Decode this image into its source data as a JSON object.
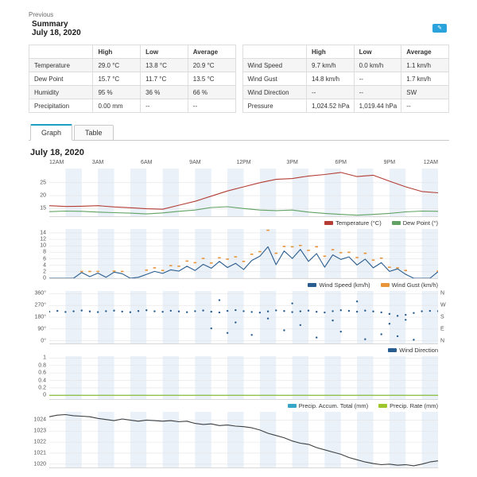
{
  "header": {
    "previous_label": "Previous",
    "title": "Summary",
    "date": "July 18, 2020"
  },
  "icons": {
    "top_right_action": "✎"
  },
  "colors": {
    "accent_tab": "#1d9fc4",
    "stripe": "#eaf1f8",
    "grid": "#e3e3e3",
    "button_blue": "#2aa3dc",
    "temperature": "#b43c35",
    "dew_point": "#61a164",
    "wind_speed": "#2a5d8f",
    "wind_gust": "#e8953a",
    "wind_direction": "#2a5d8f",
    "precip_accum": "#37a6c7",
    "precip_rate": "#9dc62d",
    "pressure": "#3c4043"
  },
  "summary_tables": [
    {
      "name": "conditions",
      "headers": [
        "",
        "High",
        "Low",
        "Average"
      ],
      "rows": [
        {
          "label": "Temperature",
          "values": [
            "29.0 °C",
            "13.8 °C",
            "20.9 °C"
          ]
        },
        {
          "label": "Dew Point",
          "values": [
            "15.7 °C",
            "11.7 °C",
            "13.5 °C"
          ]
        },
        {
          "label": "Humidity",
          "values": [
            "95 %",
            "36 %",
            "66 %"
          ]
        },
        {
          "label": "Precipitation",
          "values": [
            "0.00 mm",
            "--",
            "--"
          ]
        }
      ]
    },
    {
      "name": "wind-pressure",
      "headers": [
        "",
        "High",
        "Low",
        "Average"
      ],
      "rows": [
        {
          "label": "Wind Speed",
          "values": [
            "9.7 km/h",
            "0.0 km/h",
            "1.1 km/h"
          ]
        },
        {
          "label": "Wind Gust",
          "values": [
            "14.8 km/h",
            "--",
            "1.7 km/h"
          ]
        },
        {
          "label": "Wind Direction",
          "values": [
            "--",
            "--",
            "SW"
          ]
        },
        {
          "label": "Pressure",
          "values": [
            "1,024.52 hPa",
            "1,019.44 hPa",
            "--"
          ]
        }
      ]
    }
  ],
  "tabs": [
    {
      "id": "graph",
      "label": "Graph",
      "active": true
    },
    {
      "id": "table",
      "label": "Table",
      "active": false
    }
  ],
  "graph_section": {
    "date": "July 18, 2020",
    "xaxis_labels": [
      "12AM",
      "3AM",
      "6AM",
      "9AM",
      "12PM",
      "3PM",
      "6PM",
      "9PM",
      "12AM"
    ]
  },
  "chart_data": [
    {
      "name": "temperature-dewpoint",
      "type": "line",
      "height": 60,
      "ylim": [
        12,
        30.5
      ],
      "yticks": [
        15,
        20,
        25
      ],
      "tick_suffix": "",
      "legend": true,
      "series": [
        {
          "name": "Temperature (°C)",
          "color": "#b43c35",
          "type": "line",
          "values": [
            16.1,
            15.8,
            15.9,
            16.1,
            15.6,
            15.3,
            14.9,
            14.7,
            16.3,
            17.8,
            19.8,
            21.8,
            23.4,
            25.0,
            26.3,
            26.6,
            27.6,
            28.2,
            29.0,
            27.4,
            27.9,
            25.6,
            23.4,
            21.6,
            21.1
          ]
        },
        {
          "name": "Dew Point (°)",
          "color": "#61a164",
          "type": "line",
          "values": [
            13.8,
            14.0,
            13.9,
            13.6,
            13.4,
            13.2,
            12.9,
            13.3,
            13.9,
            14.4,
            15.4,
            15.7,
            15.0,
            14.4,
            14.2,
            14.4,
            13.6,
            13.1,
            12.7,
            12.4,
            12.7,
            13.1,
            13.7,
            14.0,
            13.9
          ]
        }
      ]
    },
    {
      "name": "wind",
      "type": "line",
      "height": 62,
      "ylim": [
        0,
        15.2
      ],
      "yticks": [
        0,
        2,
        4,
        6,
        8,
        10,
        12,
        14
      ],
      "tick_suffix": "",
      "legend": true,
      "series": [
        {
          "name": "Wind Speed (km/h)",
          "color": "#2a5d8f",
          "type": "line",
          "values": [
            0,
            0,
            0,
            0,
            1.8,
            0.5,
            1.6,
            0.3,
            1.9,
            1.4,
            0,
            0.3,
            1.2,
            2.1,
            1.5,
            2.6,
            2.2,
            3.7,
            2.4,
            4.3,
            3.1,
            5.2,
            3.3,
            4.6,
            2.7,
            5.5,
            6.8,
            9.7,
            4.2,
            8.4,
            6.1,
            8.9,
            5.2,
            7.6,
            3.4,
            7.2,
            5.8,
            6.6,
            4.1,
            5.9,
            3.2,
            4.8,
            2.1,
            2.9,
            1.2,
            0,
            0,
            0,
            2.0
          ]
        },
        {
          "name": "Wind Gust (km/h)",
          "color": "#e8953a",
          "type": "scatter",
          "marker": "dash",
          "values": [
            null,
            null,
            null,
            null,
            2.1,
            2.1,
            2.1,
            null,
            2.2,
            2.1,
            null,
            null,
            2.5,
            3.2,
            2.4,
            3.9,
            3.7,
            5.3,
            4.8,
            6.1,
            4.7,
            6.3,
            5.9,
            6.6,
            5.2,
            7.4,
            8.2,
            14.8,
            7.7,
            9.8,
            9.7,
            10.1,
            8.6,
            9.7,
            6.8,
            8.8,
            7.9,
            8.0,
            6.4,
            7.7,
            5.6,
            6.2,
            3.4,
            3.2,
            2.4,
            null,
            null,
            null,
            2.2
          ]
        }
      ]
    },
    {
      "name": "wind-direction",
      "type": "scatter",
      "height": 66,
      "ylim": [
        -20,
        380
      ],
      "yticks": [
        0,
        90,
        180,
        270,
        360
      ],
      "tick_suffix": "°",
      "legend": true,
      "right_labels": [
        {
          "value": 360,
          "label": "N"
        },
        {
          "value": 270,
          "label": "W"
        },
        {
          "value": 180,
          "label": "S"
        },
        {
          "value": 90,
          "label": "E"
        },
        {
          "value": 0,
          "label": "N"
        }
      ],
      "series": [
        {
          "name": "Wind Direction",
          "color": "#2a5d8f",
          "type": "scatter",
          "marker": "dot",
          "values": [
            222,
            228,
            220,
            225,
            231,
            224,
            219,
            226,
            230,
            223,
            218,
            227,
            233,
            225,
            221,
            229,
            224,
            218,
            226,
            231,
            222,
            216,
            228,
            234,
            226,
            220,
            215,
            224,
            232,
            227,
            219,
            225,
            230,
            221,
            216,
            226,
            233,
            228,
            222,
            230,
            224,
            217,
            205,
            190,
            198,
            212,
            225,
            228,
            226
          ]
        },
        {
          "name": "Wind Direction",
          "color": "#2a5d8f",
          "type": "scatter",
          "marker": "dot",
          "show_in_legend": false,
          "values": [
            null,
            null,
            null,
            null,
            null,
            null,
            null,
            null,
            null,
            null,
            null,
            null,
            null,
            null,
            null,
            null,
            null,
            null,
            null,
            null,
            95,
            310,
            60,
            140,
            null,
            45,
            null,
            170,
            null,
            80,
            285,
            120,
            null,
            25,
            null,
            155,
            70,
            null,
            300,
            12,
            null,
            50,
            130,
            35,
            160,
            8,
            null,
            null,
            null
          ]
        }
      ]
    },
    {
      "name": "precipitation",
      "type": "line",
      "height": 54,
      "ylim": [
        -0.1,
        1.05
      ],
      "yticks": [
        0,
        0.2,
        0.4,
        0.6,
        0.8,
        1
      ],
      "tick_suffix": "",
      "legend": true,
      "series": [
        {
          "name": "Precip. Accum. Total (mm)",
          "color": "#37a6c7",
          "type": "line",
          "values": [
            0,
            0
          ]
        },
        {
          "name": "Precip. Rate (mm)",
          "color": "#9dc62d",
          "type": "line",
          "values": [
            0,
            0
          ]
        }
      ]
    },
    {
      "name": "pressure",
      "type": "line",
      "height": 70,
      "ylim": [
        1019.7,
        1024.75
      ],
      "yticks": [
        1020,
        1021,
        1022,
        1023,
        1024
      ],
      "tick_suffix": "",
      "legend": false,
      "series": [
        {
          "name": "Pressure (hPa)",
          "color": "#3c4043",
          "type": "line",
          "values": [
            1024.3,
            1024.45,
            1024.5,
            1024.4,
            1024.35,
            1024.3,
            1024.15,
            1024.05,
            1023.95,
            1024.1,
            1024.0,
            1023.9,
            1024.0,
            1023.95,
            1023.9,
            1023.95,
            1023.85,
            1023.9,
            1023.7,
            1023.6,
            1023.65,
            1023.5,
            1023.55,
            1023.45,
            1023.4,
            1023.3,
            1023.1,
            1022.8,
            1022.6,
            1022.4,
            1022.1,
            1021.9,
            1021.8,
            1021.5,
            1021.3,
            1021.1,
            1020.9,
            1020.6,
            1020.4,
            1020.2,
            1020.05,
            1019.95,
            1020.0,
            1019.9,
            1019.95,
            1019.85,
            1020.0,
            1020.2,
            1020.3
          ]
        }
      ]
    }
  ]
}
